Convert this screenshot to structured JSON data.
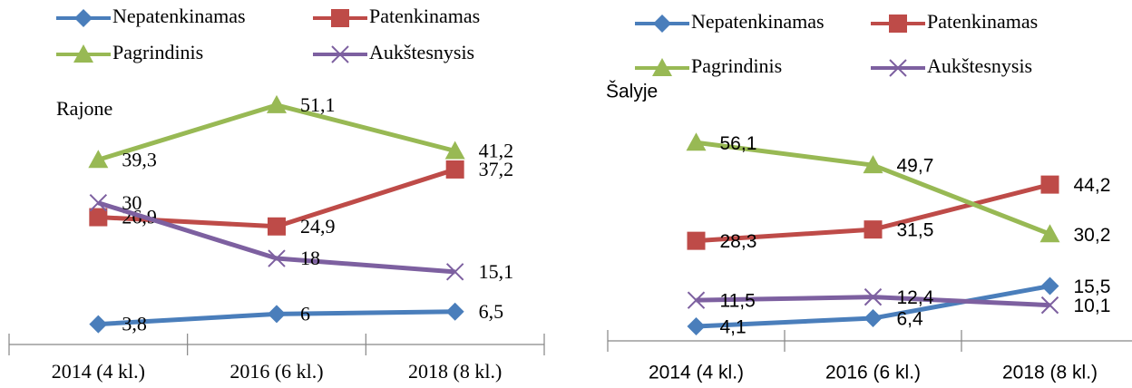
{
  "chart_data": [
    {
      "type": "line",
      "title": "Rajone",
      "categories": [
        "2014 (4 kl.)",
        "2016 (6 kl.)",
        "2018 (8 kl.)"
      ],
      "ylim": [
        0,
        55
      ],
      "series": [
        {
          "name": "Nepatenkinamas",
          "color": "#4a7ebb",
          "values": [
            3.8,
            6,
            6.5
          ],
          "value_labels": [
            "3,8",
            "6",
            "6,5"
          ]
        },
        {
          "name": "Patenkinamas",
          "color": "#be4b48",
          "values": [
            26.9,
            24.9,
            37.2
          ],
          "value_labels": [
            "26,9",
            "24,9",
            "37,2"
          ]
        },
        {
          "name": "Pagrindinis",
          "color": "#98b954",
          "values": [
            39.3,
            51.1,
            41.2
          ],
          "value_labels": [
            "39,3",
            "51,1",
            "41,2"
          ]
        },
        {
          "name": "Aukštesnysis",
          "color": "#7d60a0",
          "values": [
            30,
            18,
            15.1
          ],
          "value_labels": [
            "30",
            "18",
            "15,1"
          ]
        }
      ]
    },
    {
      "type": "line",
      "title": "Šalyje",
      "categories": [
        "2014 (4 kl.)",
        "2016 (6 kl.)",
        "2018 (8 kl.)"
      ],
      "ylim": [
        0,
        60
      ],
      "series": [
        {
          "name": "Nepatenkinamas",
          "color": "#4a7ebb",
          "values": [
            4.1,
            6.4,
            15.5
          ],
          "value_labels": [
            "4,1",
            "6,4",
            "15,5"
          ]
        },
        {
          "name": "Patenkinamas",
          "color": "#be4b48",
          "values": [
            28.3,
            31.5,
            44.2
          ],
          "value_labels": [
            "28,3",
            "31,5",
            "44,2"
          ]
        },
        {
          "name": "Pagrindinis",
          "color": "#98b954",
          "values": [
            56.1,
            49.7,
            30.2
          ],
          "value_labels": [
            "56,1",
            "49,7",
            "30,2"
          ]
        },
        {
          "name": "Aukštesnysis",
          "color": "#7d60a0",
          "values": [
            11.5,
            12.4,
            10.1
          ],
          "value_labels": [
            "11,5",
            "12,4",
            "10,1"
          ]
        }
      ]
    }
  ]
}
